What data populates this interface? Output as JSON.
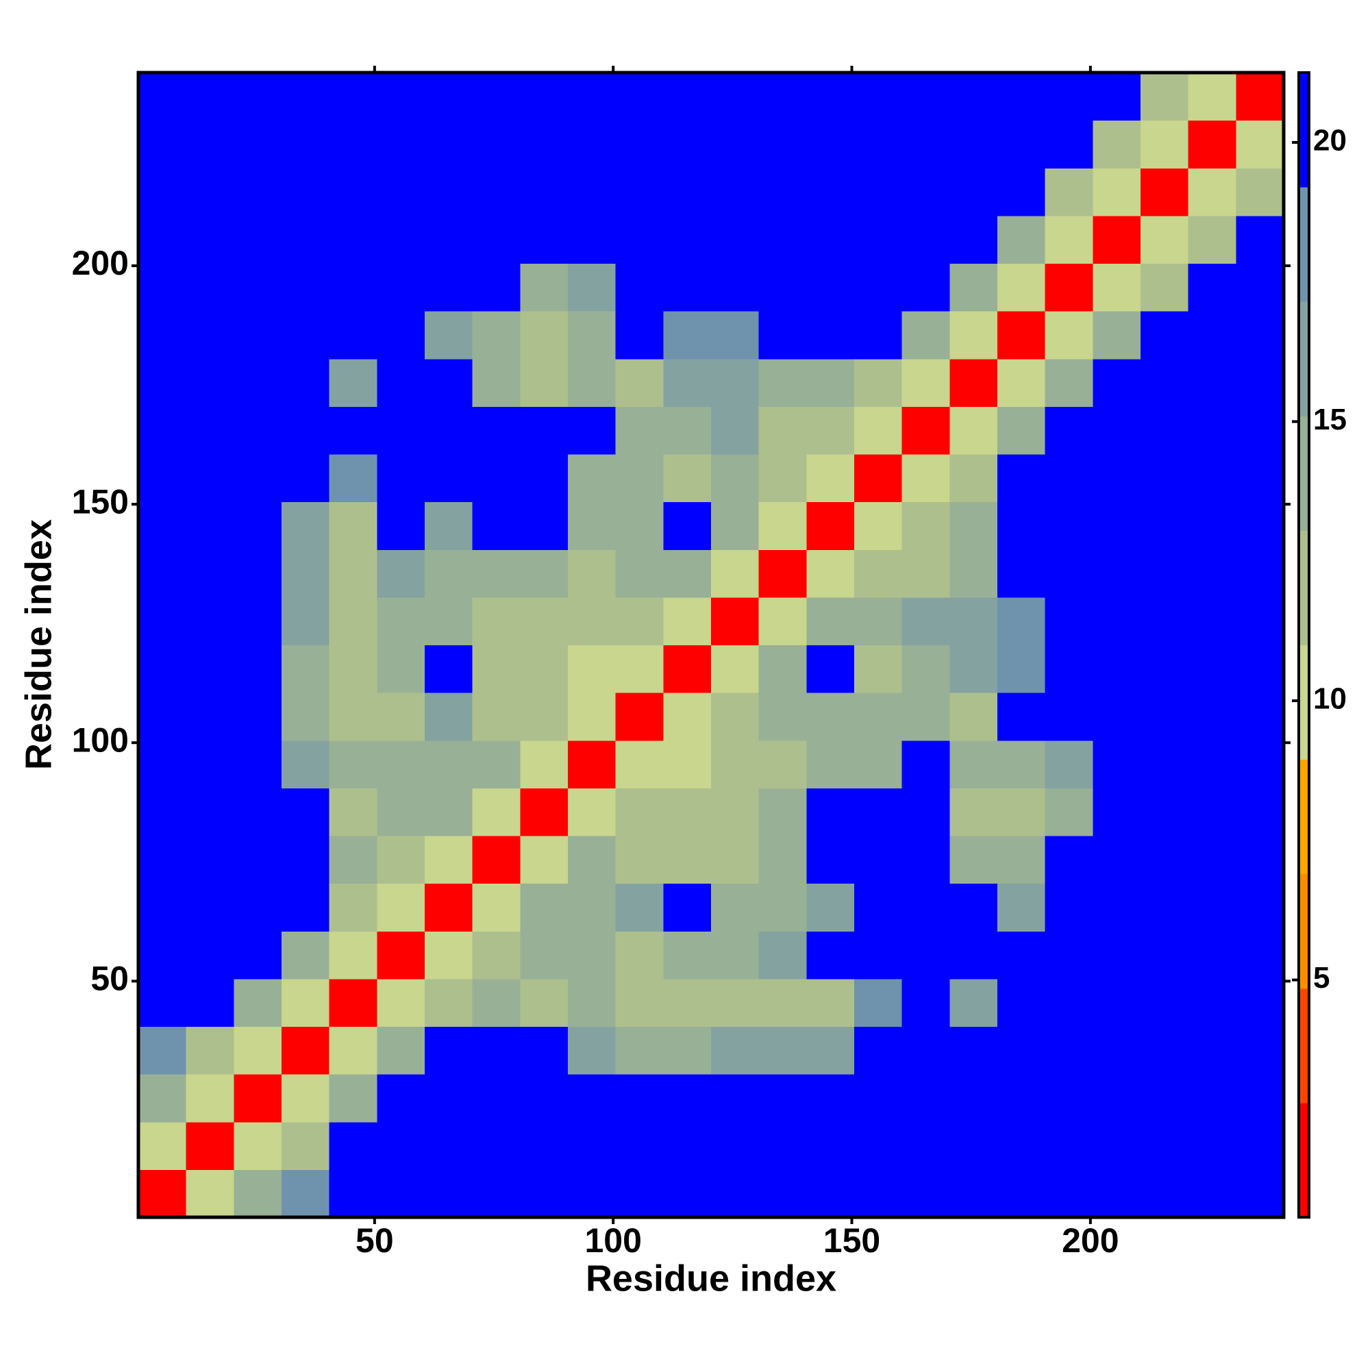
{
  "chart_data": {
    "type": "heatmap",
    "xlabel": "Residue index",
    "ylabel": "Residue index",
    "x": [
      5.5,
      15.5,
      25.5,
      35.5,
      45.5,
      55.5,
      65.5,
      75.5,
      85.5,
      95.5,
      105.5,
      115.5,
      125.5,
      135.5,
      145.5,
      155.5,
      165.5,
      175.5,
      185.5,
      195.5,
      205.5,
      215.5,
      225.5,
      235.5
    ],
    "y": [
      5.5,
      15.5,
      25.5,
      35.5,
      45.5,
      55.5,
      65.5,
      75.5,
      85.5,
      95.5,
      105.5,
      115.5,
      125.5,
      135.5,
      145.5,
      155.5,
      165.5,
      175.5,
      185.5,
      195.5,
      205.5,
      215.5,
      225.5,
      235.5
    ],
    "z": [
      [
        2.5,
        9.5,
        14,
        18,
        21,
        21,
        21,
        21,
        21,
        21,
        21,
        21,
        21,
        21,
        21,
        21,
        21,
        21,
        21,
        21,
        21,
        21,
        21,
        21
      ],
      [
        9.5,
        2.5,
        9.5,
        13,
        21,
        21,
        21,
        21,
        21,
        21,
        21,
        21,
        21,
        21,
        21,
        21,
        21,
        21,
        21,
        21,
        21,
        21,
        21,
        21
      ],
      [
        14,
        9.5,
        2.5,
        9.5,
        15,
        21,
        21,
        21,
        21,
        21,
        21,
        21,
        21,
        21,
        21,
        21,
        21,
        21,
        21,
        21,
        21,
        21,
        21,
        21
      ],
      [
        18,
        13,
        9.5,
        2.5,
        9.5,
        15,
        21,
        21,
        21,
        17,
        15,
        14,
        16,
        17,
        16,
        21,
        21,
        21,
        21,
        21,
        21,
        21,
        21,
        21
      ],
      [
        21,
        21,
        15,
        9.5,
        2.5,
        9.5,
        13,
        14,
        13,
        14,
        13,
        12,
        13,
        12,
        12,
        18,
        21,
        16,
        21,
        21,
        21,
        21,
        21,
        21
      ],
      [
        21,
        21,
        21,
        15,
        9.5,
        2.5,
        9.5,
        12,
        14,
        14,
        13,
        15,
        14,
        16,
        21,
        21,
        21,
        21,
        21,
        21,
        21,
        21,
        21,
        21
      ],
      [
        21,
        21,
        21,
        21,
        13,
        9.5,
        2.5,
        9.5,
        15,
        15,
        17,
        21,
        14,
        15,
        16,
        21,
        21,
        21,
        17,
        21,
        21,
        21,
        21,
        21
      ],
      [
        21,
        21,
        21,
        21,
        14,
        12,
        9.5,
        2.5,
        9.5,
        15,
        12,
        13,
        12,
        14,
        21,
        21,
        21,
        14,
        15,
        21,
        21,
        21,
        21,
        21
      ],
      [
        21,
        21,
        21,
        21,
        13,
        14,
        15,
        9.5,
        2.5,
        9.5,
        11,
        12,
        12,
        14,
        21,
        21,
        21,
        13,
        13,
        15,
        21,
        21,
        21,
        21
      ],
      [
        21,
        21,
        21,
        17,
        14,
        14,
        15,
        15,
        9.5,
        2.5,
        9.5,
        10,
        13,
        13,
        14,
        15,
        21,
        14,
        15,
        16,
        21,
        21,
        21,
        21
      ],
      [
        21,
        21,
        21,
        15,
        13,
        13,
        17,
        12,
        11,
        9.5,
        2.5,
        9.5,
        13,
        14,
        14,
        15,
        15,
        12,
        21,
        21,
        21,
        21,
        21,
        21
      ],
      [
        21,
        21,
        21,
        14,
        12,
        15,
        21,
        13,
        12,
        10,
        9.5,
        2.5,
        9.5,
        15,
        21,
        13,
        15,
        17,
        18,
        21,
        21,
        21,
        21,
        21
      ],
      [
        21,
        21,
        21,
        16,
        13,
        14,
        14,
        12,
        12,
        13,
        13,
        9.5,
        2.5,
        9.5,
        15,
        14,
        16,
        17,
        18,
        21,
        21,
        21,
        21,
        21
      ],
      [
        21,
        21,
        21,
        17,
        12,
        16,
        15,
        14,
        14,
        13,
        14,
        15,
        9.5,
        2.5,
        9.5,
        12,
        12,
        15,
        21,
        21,
        21,
        21,
        21,
        21
      ],
      [
        21,
        21,
        21,
        16,
        12,
        21,
        16,
        21,
        21,
        14,
        14,
        21,
        15,
        9.5,
        2.5,
        9.5,
        12,
        14,
        21,
        21,
        21,
        21,
        21,
        21
      ],
      [
        21,
        21,
        21,
        21,
        18,
        21,
        21,
        21,
        21,
        15,
        15,
        13,
        14,
        12,
        9.5,
        2.5,
        9.5,
        12,
        21,
        21,
        21,
        21,
        21,
        21
      ],
      [
        21,
        21,
        21,
        21,
        21,
        21,
        21,
        21,
        21,
        21,
        15,
        15,
        16,
        12,
        12,
        9.5,
        2.5,
        9.5,
        15,
        21,
        21,
        21,
        21,
        21
      ],
      [
        21,
        21,
        21,
        21,
        16,
        21,
        21,
        14,
        13,
        14,
        12,
        17,
        17,
        15,
        14,
        12,
        9.5,
        2.5,
        9.5,
        15,
        21,
        21,
        21,
        21
      ],
      [
        21,
        21,
        21,
        21,
        21,
        21,
        17,
        15,
        13,
        15,
        21,
        18,
        18,
        21,
        21,
        21,
        15,
        9.5,
        2.5,
        9.5,
        15,
        21,
        21,
        21
      ],
      [
        21,
        21,
        21,
        21,
        21,
        21,
        21,
        21,
        15,
        16,
        21,
        21,
        21,
        21,
        21,
        21,
        21,
        15,
        9.5,
        2.5,
        9.5,
        13,
        21,
        21
      ],
      [
        21,
        21,
        21,
        21,
        21,
        21,
        21,
        21,
        21,
        21,
        21,
        21,
        21,
        21,
        21,
        21,
        21,
        21,
        15,
        9.5,
        2.5,
        9.5,
        13,
        21
      ],
      [
        21,
        21,
        21,
        21,
        21,
        21,
        21,
        21,
        21,
        21,
        21,
        21,
        21,
        21,
        21,
        21,
        21,
        21,
        21,
        13,
        9.5,
        2.5,
        9.5,
        13
      ],
      [
        21,
        21,
        21,
        21,
        21,
        21,
        21,
        21,
        21,
        21,
        21,
        21,
        21,
        21,
        21,
        21,
        21,
        21,
        21,
        21,
        13,
        9.5,
        2.5,
        9.5
      ],
      [
        21,
        21,
        21,
        21,
        21,
        21,
        21,
        21,
        21,
        21,
        21,
        21,
        21,
        21,
        21,
        21,
        21,
        21,
        21,
        21,
        21,
        13,
        9.5,
        2.5
      ]
    ],
    "xlim": [
      0.5,
      240.5
    ],
    "ylim": [
      0.5,
      240.5
    ],
    "xticks": [
      50,
      100,
      150,
      200
    ],
    "yticks": [
      50,
      100,
      150,
      200
    ],
    "clim": [
      0.75,
      21.25
    ],
    "cticks": [
      5,
      10,
      15,
      20
    ],
    "colors": [
      "#ff0000",
      "#ff4500",
      "#ff8c00",
      "#ffa500",
      "#c8d68e",
      "#aebf8e",
      "#98b096",
      "#84a3a0",
      "#6f93ad",
      "#0000ff"
    ]
  }
}
